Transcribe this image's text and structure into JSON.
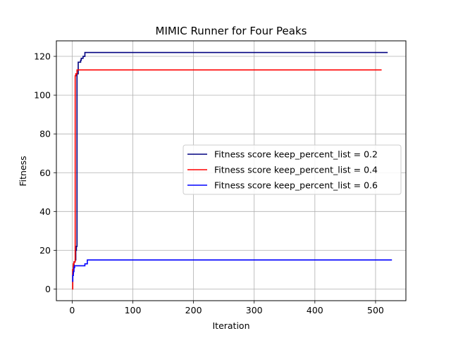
{
  "chart_data": {
    "type": "line",
    "title": "MIMIC Runner for Four Peaks",
    "xlabel": "Iteration",
    "ylabel": "Fitness",
    "xlim": [
      -26,
      550
    ],
    "ylim": [
      -6,
      128
    ],
    "xticks": [
      0,
      100,
      200,
      300,
      400,
      500
    ],
    "yticks": [
      0,
      20,
      40,
      60,
      80,
      100,
      120
    ],
    "grid": true,
    "legend_position": "center-right",
    "series": [
      {
        "name": "Fitness score keep_percent_list = 0.2",
        "color": "#000080",
        "x": [
          0,
          1,
          1,
          2,
          2,
          3,
          3,
          5,
          5,
          6,
          6,
          7,
          7,
          8,
          8,
          10,
          10,
          14,
          14,
          15,
          15,
          18,
          18,
          21,
          21,
          520
        ],
        "y": [
          4,
          4,
          8,
          8,
          12,
          12,
          14,
          14,
          15,
          15,
          20,
          20,
          22,
          22,
          111,
          111,
          117,
          117,
          118,
          118,
          119,
          119,
          120,
          120,
          122,
          122
        ]
      },
      {
        "name": "Fitness score keep_percent_list = 0.4",
        "color": "#ff0000",
        "x": [
          0,
          1,
          1,
          2,
          2,
          3,
          3,
          5,
          5,
          6,
          6,
          8,
          8,
          510
        ],
        "y": [
          0,
          0,
          10,
          10,
          13,
          13,
          14,
          14,
          110,
          110,
          111,
          111,
          113,
          113
        ]
      },
      {
        "name": "Fitness score keep_percent_list = 0.6",
        "color": "#0000ff",
        "x": [
          0,
          1,
          1,
          2,
          2,
          3,
          3,
          4,
          4,
          21,
          21,
          25,
          25,
          527
        ],
        "y": [
          4,
          4,
          7,
          7,
          9,
          9,
          11,
          11,
          12,
          12,
          13,
          13,
          15,
          15
        ]
      }
    ]
  }
}
